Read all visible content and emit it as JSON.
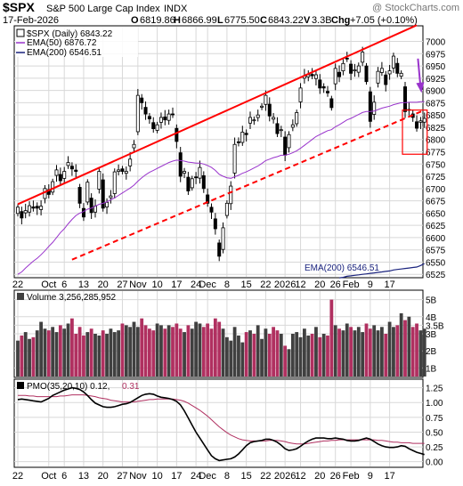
{
  "header": {
    "symbol": "$SPX",
    "name": "S&P 500 Large Cap Index",
    "exchange": "INDX",
    "watermark": "@ StockCharts.com",
    "date": "17-Feb-2026",
    "quote": {
      "o_label": "O",
      "o": "6819.86",
      "h_label": "H",
      "h": "6866.99",
      "l_label": "L",
      "l": "6775.50",
      "c_label": "C",
      "c": "6843.22",
      "v_label": "V",
      "v": "3.3B",
      "chg_label": "Chg",
      "chg": "+7.05 (+0.10%)"
    }
  },
  "legend": {
    "price": "$SPX (Daily) 6843.22",
    "ema50": "EMA(50) 6876.72",
    "ema200": "EMA(200) 6546.51"
  },
  "ema200_label": "EMA(200) 6546.51",
  "volume_label": "Volume 3,256,285,952",
  "pmo_label_a": "PMO(35,20,10) 0.12,",
  "pmo_label_b": "0.31",
  "colors": {
    "up": "#000000",
    "down": "#ff0000",
    "vol_up": "#404040",
    "vol_down": "#b03060",
    "ema50": "#9933cc",
    "ema200": "#1a237e",
    "channel": "#ff0000",
    "pmo_line": "#000000",
    "pmo_signal": "#b03060",
    "highlight": "#ff0000",
    "arrow": "#9933cc",
    "grid": "#d8d8d8",
    "panel_bg": "#ffffff"
  },
  "chart_data": {
    "type": "candlestick",
    "x_tick_labels": [
      "22",
      "Oct",
      "6",
      "13",
      "20",
      "27",
      "Nov",
      "10",
      "17",
      "24",
      "Dec",
      "8",
      "15",
      "22",
      "2026",
      "12",
      "20",
      "26",
      "Feb",
      "9",
      "17"
    ],
    "price_axis": {
      "ylim": [
        6520,
        7030
      ],
      "ticks": [
        6525,
        6550,
        6575,
        6600,
        6625,
        6650,
        6675,
        6700,
        6725,
        6750,
        6775,
        6800,
        6825,
        6850,
        6875,
        6900,
        6925,
        6950,
        6975,
        7000
      ]
    },
    "volume_axis": {
      "ticks_label": [
        "1B",
        "2B",
        "3B",
        "3.5B",
        "4B",
        "5B"
      ],
      "ticks": [
        1,
        2,
        3,
        3.5,
        4,
        5
      ],
      "ylim": [
        0.5,
        5.5
      ]
    },
    "pmo_axis": {
      "ticks_label": [
        "0.00",
        "0.25",
        "0.50",
        "0.75",
        "1.00",
        "1.25"
      ],
      "ticks": [
        0,
        0.25,
        0.5,
        0.75,
        1,
        1.25
      ],
      "ylim": [
        -0.08,
        1.38
      ]
    },
    "closes": [
      6662,
      6640,
      6655,
      6665,
      6660,
      6660,
      6664,
      6700,
      6688,
      6714,
      6738,
      6716,
      6735,
      6753,
      6740,
      6735,
      6670,
      6642,
      6713,
      6651,
      6664,
      6735,
      6660,
      6672,
      6685,
      6734,
      6738,
      6735,
      6735,
      6760,
      6790,
      6890,
      6875,
      6852,
      6842,
      6822,
      6830,
      6845,
      6840,
      6852,
      6851,
      6796,
      6725,
      6735,
      6695,
      6720,
      6722,
      6743,
      6700,
      6670,
      6652,
      6618,
      6562,
      6620,
      6670,
      6705,
      6790,
      6795,
      6815,
      6810,
      6845,
      6840,
      6850,
      6868,
      6890,
      6848,
      6845,
      6812,
      6820,
      6768,
      6810,
      6830,
      6855,
      6905,
      6930,
      6932,
      6930,
      6932,
      6905,
      6905,
      6895,
      6865,
      6945,
      6928,
      6955,
      6965,
      6935,
      6942,
      6950,
      6978,
      6918,
      6837,
      6876,
      6939,
      6945,
      6912,
      6940,
      6970,
      6935,
      6935,
      6857,
      6860,
      6845,
      6823,
      6838,
      6843
    ],
    "ema50": [
      6525,
      6530,
      6538,
      6545,
      6552,
      6558,
      6565,
      6573,
      6582,
      6590,
      6600,
      6610,
      6618,
      6628,
      6637,
      6645,
      6650,
      6653,
      6658,
      6660,
      6664,
      6668,
      6670,
      6673,
      6677,
      6681,
      6686,
      6691,
      6696,
      6701,
      6707,
      6715,
      6722,
      6728,
      6733,
      6737,
      6741,
      6745,
      6749,
      6753,
      6756,
      6758,
      6757,
      6756,
      6754,
      6753,
      6752,
      6752,
      6750,
      6747,
      6743,
      6737,
      6729,
      6725,
      6722,
      6721,
      6724,
      6727,
      6731,
      6734,
      6738,
      6742,
      6746,
      6751,
      6757,
      6760,
      6763,
      6765,
      6768,
      6768,
      6770,
      6773,
      6777,
      6782,
      6788,
      6794,
      6800,
      6806,
      6810,
      6814,
      6818,
      6820,
      6826,
      6830,
      6835,
      6840,
      6843,
      6847,
      6851,
      6855,
      6857,
      6857,
      6858,
      6861,
      6864,
      6866,
      6868,
      6871,
      6873,
      6875,
      6875,
      6876,
      6876,
      6876,
      6877,
      6877
    ],
    "ema200": [
      6548,
      6548,
      6548,
      6548,
      6548,
      6548,
      6548,
      6548,
      6548,
      6548,
      6548,
      6548,
      6548,
      6548,
      6548,
      6548,
      6548,
      6548,
      6548,
      6548,
      6548,
      6548,
      6548,
      6548,
      6548,
      6548,
      6548,
      6548,
      6548,
      6548,
      6548,
      6548,
      6548,
      6548,
      6548,
      6548,
      6548,
      6548,
      6548,
      6548,
      6548,
      6548,
      6548,
      6548,
      6548,
      6548,
      6548,
      6548,
      6548,
      6548,
      6548,
      6548,
      6548,
      6548,
      6548,
      6548,
      6548,
      6548,
      6548,
      6548,
      6548,
      6548,
      6548,
      6548,
      6548,
      6548,
      6548,
      6548,
      6548,
      6548,
      6548,
      6548,
      6548,
      6548,
      6548,
      6548,
      6548,
      6548,
      6548,
      6548,
      6548,
      6548,
      6548,
      6518,
      6519,
      6521,
      6522,
      6523,
      6524,
      6525,
      6526,
      6527,
      6528,
      6529,
      6530,
      6531,
      6532,
      6534,
      6535,
      6536,
      6537,
      6538,
      6539,
      6540,
      6543,
      6547
    ],
    "volume_bn": [
      2.6,
      2.9,
      3.1,
      2.7,
      2.8,
      3.2,
      3.7,
      3.3,
      3.2,
      3.4,
      3.1,
      3.5,
      3.3,
      3.6,
      3.9,
      3.0,
      3.4,
      2.9,
      3.1,
      3.3,
      3.0,
      2.9,
      3.2,
      3.0,
      3.3,
      3.1,
      3.2,
      3.6,
      3.5,
      3.4,
      3.7,
      3.4,
      3.9,
      3.5,
      3.3,
      3.2,
      3.6,
      3.5,
      3.3,
      3.5,
      3.4,
      3.6,
      3.3,
      3.1,
      3.5,
      3.3,
      3.7,
      3.6,
      3.4,
      3.6,
      3.3,
      3.9,
      3.7,
      3.3,
      2.8,
      2.6,
      3.4,
      2.9,
      2.5,
      3.1,
      3.2,
      3.0,
      3.5,
      2.7,
      3.3,
      3.0,
      3.4,
      3.2,
      3.0,
      2.3,
      2.1,
      3.0,
      3.1,
      2.8,
      3.3,
      2.9,
      3.0,
      3.4,
      2.8,
      3.0,
      2.9,
      5.0,
      3.5,
      3.3,
      3.2,
      3.6,
      3.4,
      3.2,
      3.4,
      3.1,
      3.6,
      3.3,
      3.5,
      3.2,
      3.4,
      3.0,
      3.7,
      3.4,
      3.5,
      4.2,
      3.8,
      4.0,
      3.4,
      3.6,
      3.2,
      3.3
    ],
    "pmo": [
      1.05,
      1.06,
      1.05,
      1.04,
      1.03,
      1.02,
      1.01,
      1.04,
      1.07,
      1.12,
      1.15,
      1.18,
      1.21,
      1.23,
      1.25,
      1.24,
      1.22,
      1.18,
      1.12,
      1.05,
      0.99,
      0.96,
      0.93,
      0.92,
      0.92,
      0.93,
      0.95,
      0.97,
      0.98,
      1.0,
      1.04,
      1.08,
      1.12,
      1.14,
      1.15,
      1.14,
      1.11,
      1.09,
      1.08,
      1.07,
      1.05,
      1.02,
      0.96,
      0.86,
      0.74,
      0.62,
      0.5,
      0.4,
      0.3,
      0.2,
      0.1,
      0.05,
      0.02,
      0.03,
      0.04,
      0.05,
      0.08,
      0.13,
      0.2,
      0.27,
      0.32,
      0.34,
      0.35,
      0.36,
      0.38,
      0.38,
      0.36,
      0.33,
      0.28,
      0.22,
      0.19,
      0.2,
      0.22,
      0.26,
      0.31,
      0.35,
      0.38,
      0.4,
      0.4,
      0.4,
      0.39,
      0.39,
      0.4,
      0.39,
      0.38,
      0.36,
      0.35,
      0.35,
      0.36,
      0.38,
      0.4,
      0.38,
      0.34,
      0.3,
      0.27,
      0.25,
      0.24,
      0.24,
      0.25,
      0.27,
      0.26,
      0.22,
      0.19,
      0.16,
      0.14,
      0.12
    ],
    "pmo_signal": [
      1.12,
      1.12,
      1.12,
      1.11,
      1.11,
      1.1,
      1.1,
      1.1,
      1.1,
      1.1,
      1.1,
      1.11,
      1.11,
      1.12,
      1.13,
      1.13,
      1.13,
      1.13,
      1.12,
      1.11,
      1.1,
      1.08,
      1.07,
      1.06,
      1.04,
      1.03,
      1.02,
      1.01,
      1.01,
      1.01,
      1.01,
      1.02,
      1.03,
      1.04,
      1.05,
      1.05,
      1.06,
      1.06,
      1.06,
      1.06,
      1.06,
      1.05,
      1.04,
      1.02,
      0.99,
      0.95,
      0.91,
      0.87,
      0.82,
      0.77,
      0.71,
      0.65,
      0.59,
      0.54,
      0.49,
      0.45,
      0.42,
      0.39,
      0.37,
      0.36,
      0.35,
      0.35,
      0.35,
      0.35,
      0.35,
      0.36,
      0.36,
      0.36,
      0.35,
      0.34,
      0.32,
      0.31,
      0.3,
      0.3,
      0.3,
      0.31,
      0.32,
      0.33,
      0.34,
      0.35,
      0.35,
      0.36,
      0.36,
      0.37,
      0.37,
      0.37,
      0.37,
      0.37,
      0.37,
      0.37,
      0.37,
      0.37,
      0.37,
      0.36,
      0.36,
      0.35,
      0.34,
      0.33,
      0.33,
      0.32,
      0.32,
      0.32,
      0.31,
      0.31,
      0.31,
      0.31
    ],
    "channel_upper": [
      [
        0,
        6668
      ],
      [
        103,
        7033
      ]
    ],
    "channel_lower": [
      [
        14,
        6555
      ],
      [
        105,
        6860
      ]
    ]
  }
}
